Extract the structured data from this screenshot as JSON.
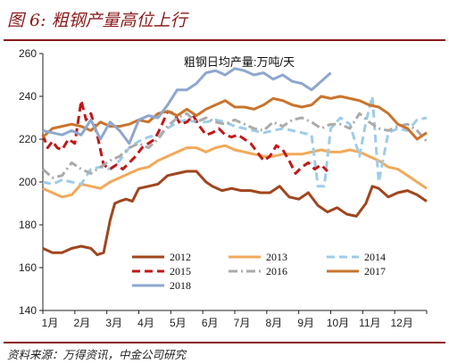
{
  "figure": {
    "title": "图 6:  粗钢产量高位上行",
    "source": "资料来源：万得资讯，中金公司研究"
  },
  "chart_data": {
    "type": "line",
    "title": "粗钢日均产量:万吨/天",
    "xlabel": "",
    "ylabel": "",
    "ylim": [
      140,
      260
    ],
    "yticks": [
      140,
      160,
      180,
      200,
      220,
      240,
      260
    ],
    "xlim": [
      0,
      12
    ],
    "months": [
      "1月",
      "2月",
      "3月",
      "4月",
      "5月",
      "6月",
      "7月",
      "8月",
      "9月",
      "10月",
      "11月",
      "12月"
    ],
    "grid": false,
    "legend": "bottom-left",
    "series": [
      {
        "name": "2012",
        "color": "#a0461e",
        "dash": "solid",
        "x": [
          0,
          0.3,
          0.6,
          0.9,
          1.2,
          1.5,
          1.7,
          1.9,
          2.1,
          2.25,
          2.4,
          2.6,
          2.8,
          3.0,
          3.3,
          3.6,
          3.9,
          4.2,
          4.5,
          4.8,
          5.1,
          5.3,
          5.6,
          5.9,
          6.2,
          6.5,
          6.8,
          7.1,
          7.4,
          7.7,
          8.0,
          8.3,
          8.6,
          8.9,
          9.2,
          9.5,
          9.8,
          10.1,
          10.3,
          10.5,
          10.8,
          11.1,
          11.4,
          11.7,
          12.0
        ],
        "y": [
          169,
          167,
          167,
          169,
          170,
          169,
          166,
          167,
          182,
          190,
          191,
          192,
          191,
          197,
          198,
          199,
          203,
          204,
          205,
          205,
          200,
          198,
          196,
          197,
          196,
          196,
          195,
          195,
          198,
          193,
          192,
          195,
          189,
          186,
          188,
          185,
          184,
          190,
          198,
          197,
          193,
          195,
          196,
          194,
          191
        ]
      },
      {
        "name": "2013",
        "color": "#f2a95a",
        "dash": "solid",
        "x": [
          0,
          0.3,
          0.6,
          0.9,
          1.2,
          1.5,
          1.8,
          2.1,
          2.4,
          2.7,
          3.0,
          3.3,
          3.6,
          3.9,
          4.2,
          4.5,
          4.8,
          5.1,
          5.4,
          5.7,
          6.0,
          6.3,
          6.6,
          6.9,
          7.2,
          7.5,
          7.8,
          8.1,
          8.4,
          8.7,
          9.0,
          9.3,
          9.6,
          9.9,
          10.2,
          10.5,
          10.8,
          11.1,
          11.4,
          11.7,
          12.0
        ],
        "y": [
          197,
          195,
          193,
          194,
          199,
          198,
          197,
          200,
          202,
          204,
          206,
          207,
          210,
          212,
          214,
          216,
          216,
          214,
          216,
          217,
          215,
          214,
          213,
          212,
          212,
          213,
          213,
          213,
          214,
          215,
          214,
          214,
          215,
          214,
          212,
          210,
          207,
          206,
          203,
          200,
          197
        ]
      },
      {
        "name": "2014",
        "color": "#9ecce8",
        "dash": "dash",
        "x": [
          0,
          0.3,
          0.6,
          0.9,
          1.2,
          1.5,
          1.8,
          2.1,
          2.4,
          2.7,
          3.0,
          3.3,
          3.6,
          3.9,
          4.2,
          4.5,
          4.8,
          5.1,
          5.4,
          5.7,
          6.0,
          6.3,
          6.6,
          6.9,
          7.2,
          7.5,
          7.8,
          8.1,
          8.4,
          8.6,
          8.8,
          9.0,
          9.3,
          9.6,
          9.9,
          10.1,
          10.3,
          10.5,
          10.8,
          11.1,
          11.4,
          11.7,
          12.0
        ],
        "y": [
          200,
          199,
          201,
          200,
          199,
          206,
          207,
          206,
          210,
          216,
          219,
          221,
          222,
          225,
          228,
          229,
          228,
          228,
          229,
          228,
          226,
          225,
          224,
          223,
          224,
          225,
          224,
          223,
          222,
          198,
          198,
          225,
          230,
          227,
          212,
          228,
          240,
          200,
          223,
          225,
          224,
          229,
          230
        ]
      },
      {
        "name": "2015",
        "color": "#c01818",
        "dash": "dash",
        "x": [
          0,
          0.15,
          0.3,
          0.45,
          0.6,
          0.8,
          1.0,
          1.2,
          1.35,
          1.5,
          1.7,
          1.9,
          2.1,
          2.3,
          2.5,
          2.7,
          2.9,
          3.1,
          3.3,
          3.5,
          3.7,
          3.9,
          4.1,
          4.3,
          4.5,
          4.7,
          4.9,
          5.1,
          5.3,
          5.5,
          5.7,
          5.9,
          6.1,
          6.3,
          6.5,
          6.7,
          6.9,
          7.1,
          7.3,
          7.5,
          7.7,
          7.9,
          8.1,
          8.3,
          8.5,
          8.7,
          8.9
        ],
        "y": [
          222,
          216,
          219,
          216,
          215,
          220,
          218,
          238,
          229,
          232,
          222,
          208,
          206,
          208,
          206,
          209,
          212,
          216,
          218,
          220,
          226,
          233,
          232,
          227,
          228,
          231,
          226,
          222,
          223,
          225,
          222,
          221,
          222,
          220,
          218,
          214,
          210,
          212,
          217,
          215,
          210,
          204,
          207,
          209,
          206,
          208,
          205
        ]
      },
      {
        "name": "2016",
        "color": "#ababab",
        "dash": "dashdot",
        "x": [
          0,
          0.3,
          0.6,
          0.9,
          1.2,
          1.5,
          1.8,
          2.1,
          2.4,
          2.7,
          3.0,
          3.3,
          3.6,
          3.9,
          4.2,
          4.5,
          4.8,
          5.1,
          5.4,
          5.7,
          6.0,
          6.3,
          6.6,
          6.9,
          7.2,
          7.5,
          7.8,
          8.1,
          8.4,
          8.7,
          9.0,
          9.3,
          9.6,
          9.9,
          10.2,
          10.5,
          10.8,
          11.1,
          11.4,
          11.7,
          12.0
        ],
        "y": [
          206,
          202,
          203,
          209,
          206,
          204,
          207,
          210,
          212,
          216,
          218,
          216,
          220,
          226,
          230,
          232,
          228,
          230,
          228,
          227,
          229,
          227,
          225,
          224,
          228,
          226,
          229,
          230,
          228,
          225,
          227,
          227,
          225,
          232,
          228,
          225,
          224,
          226,
          227,
          224,
          219
        ]
      },
      {
        "name": "2017",
        "color": "#c9742e",
        "dash": "solid",
        "x": [
          0,
          0.3,
          0.6,
          0.9,
          1.2,
          1.5,
          1.8,
          2.1,
          2.4,
          2.7,
          3.0,
          3.3,
          3.6,
          3.9,
          4.2,
          4.5,
          4.8,
          5.1,
          5.4,
          5.7,
          6.0,
          6.3,
          6.6,
          6.9,
          7.2,
          7.5,
          7.8,
          8.1,
          8.4,
          8.7,
          9.0,
          9.3,
          9.6,
          9.9,
          10.2,
          10.5,
          10.8,
          11.1,
          11.4,
          11.7,
          12.0
        ],
        "y": [
          221,
          225,
          226,
          227,
          226,
          224,
          228,
          226,
          226,
          227,
          229,
          228,
          232,
          233,
          231,
          234,
          231,
          234,
          236,
          238,
          235,
          235,
          234,
          236,
          239,
          238,
          236,
          235,
          236,
          240,
          239,
          240,
          239,
          238,
          236,
          235,
          232,
          227,
          225,
          220,
          223
        ]
      },
      {
        "name": "2018",
        "color": "#8ea7cf",
        "dash": "solid",
        "x": [
          0,
          0.3,
          0.6,
          0.9,
          1.2,
          1.5,
          1.8,
          2.1,
          2.4,
          2.7,
          3.0,
          3.3,
          3.6,
          3.9,
          4.2,
          4.5,
          4.8,
          5.1,
          5.4,
          5.7,
          6.0,
          6.3,
          6.6,
          6.9,
          7.2,
          7.5,
          7.8,
          8.1,
          8.4,
          8.7,
          9.0
        ],
        "y": [
          224,
          223,
          222,
          224,
          222,
          229,
          220,
          228,
          224,
          218,
          229,
          231,
          230,
          236,
          243,
          243,
          246,
          251,
          252,
          250,
          253,
          252,
          250,
          251,
          248,
          250,
          247,
          246,
          243,
          247,
          251
        ]
      }
    ]
  }
}
